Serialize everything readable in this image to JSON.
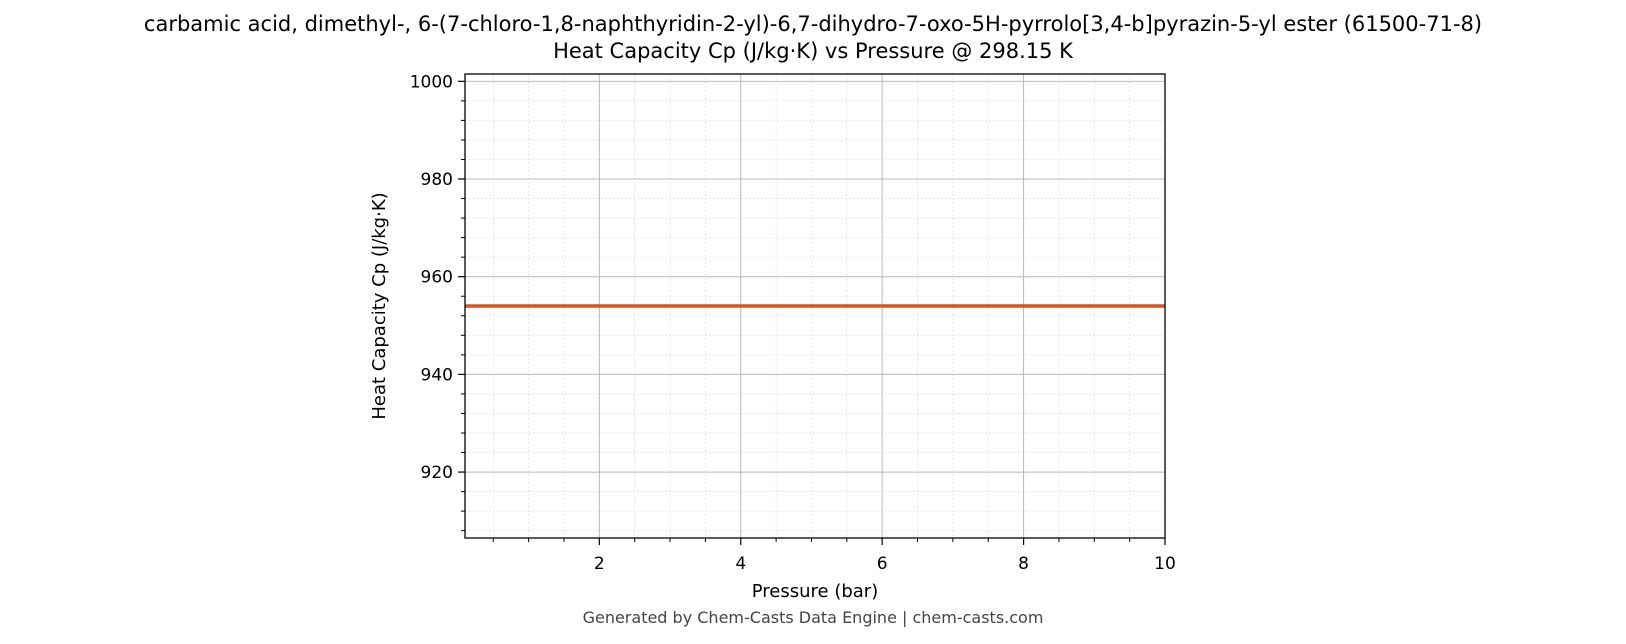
{
  "chart_data": {
    "type": "line",
    "title": "carbamic acid, dimethyl-, 6-(7-chloro-1,8-naphthyridin-2-yl)-6,7-dihydro-7-oxo-5H-pyrrolo[3,4-b]pyrazin-5-yl ester (61500-71-8)",
    "subtitle": "Heat Capacity Cp (J/kg·K) vs Pressure @ 298.15 K",
    "xlabel": "Pressure (bar)",
    "ylabel": "Heat Capacity Cp (J/kg·K)",
    "xlim": [
      0.1,
      10
    ],
    "ylim": [
      906.5,
      1001.5
    ],
    "xticks": [
      2,
      4,
      6,
      8,
      10
    ],
    "yticks": [
      920,
      940,
      960,
      980,
      1000
    ],
    "grid": true,
    "legend": "none",
    "series": [
      {
        "color": "#d9541e",
        "x": [
          0.1,
          1,
          2,
          3,
          4,
          5,
          6,
          7,
          8,
          9,
          10
        ],
        "y": [
          954,
          954,
          954,
          954,
          954,
          954,
          954,
          954,
          954,
          954,
          954
        ]
      }
    ]
  },
  "footer": "Generated by Chem-Casts Data Engine | chem-casts.com"
}
